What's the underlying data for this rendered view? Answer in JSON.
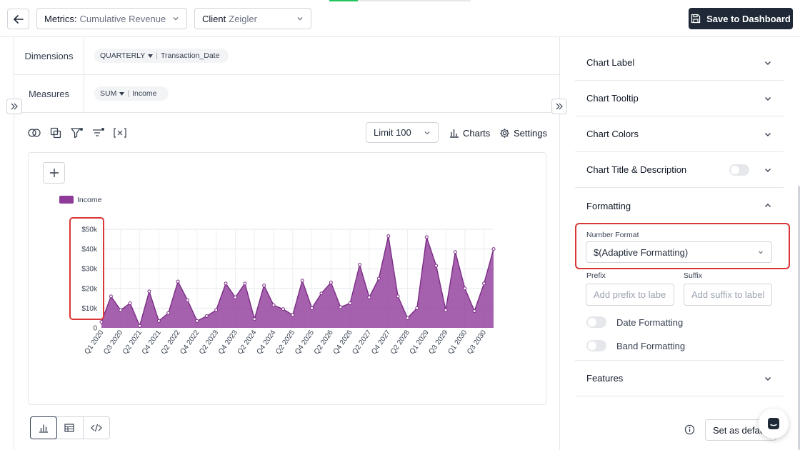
{
  "header": {
    "metrics_label": "Metrics:",
    "metrics_value": "Cumulative Revenue ...",
    "client_label": "Client",
    "client_value": "Zeigler",
    "save_label": "Save to Dashboard",
    "progress_fraction": 0.2
  },
  "query": {
    "dimensions_label": "Dimensions",
    "dimension_agg": "QUARTERLY",
    "dimension_field": "Transaction_Date",
    "measures_label": "Measures",
    "measure_agg": "SUM",
    "measure_field": "Income"
  },
  "toolbar": {
    "limit_value": "Limit 100",
    "charts_label": "Charts",
    "settings_label": "Settings"
  },
  "chart_data": {
    "type": "area",
    "series": [
      {
        "name": "Income",
        "color": "#8e3a99",
        "values": [
          3000,
          16000,
          9000,
          12500,
          1000,
          18500,
          3500,
          7500,
          23500,
          14000,
          3500,
          6000,
          9000,
          22500,
          15500,
          22500,
          4500,
          21500,
          11500,
          9500,
          6500,
          24000,
          10000,
          17500,
          23000,
          10500,
          12500,
          32000,
          15500,
          25000,
          46500,
          16000,
          5000,
          10000,
          46000,
          31500,
          9000,
          38500,
          20000,
          8500,
          22500,
          40000
        ]
      }
    ],
    "x_tick_labels": [
      "Q1 2020",
      "Q3 2020",
      "Q2 2021",
      "Q4 2021",
      "Q2 2022",
      "Q4 2022",
      "Q2 2023",
      "Q4 2023",
      "Q2 2024",
      "Q4 2024",
      "Q2 2025",
      "Q4 2025",
      "Q2 2026",
      "Q4 2026",
      "Q2 2027",
      "Q4 2027",
      "Q2 2028",
      "Q1 2029",
      "Q3 2029",
      "Q1 2030",
      "Q3 2030"
    ],
    "y_tick_labels": [
      "0",
      "$10k",
      "$20k",
      "$30k",
      "$40k",
      "$50k"
    ],
    "ylim": [
      0,
      50000
    ],
    "grid": true,
    "legend": "top-left"
  },
  "sidepanel": {
    "sections": [
      "Chart Label",
      "Chart Tooltip",
      "Chart Colors",
      "Chart Title & Description"
    ],
    "formatting_title": "Formatting",
    "number_format_label": "Number Format",
    "number_format_value": "$(Adaptive Formatting)",
    "prefix_label": "Prefix",
    "suffix_label": "Suffix",
    "prefix_placeholder": "Add prefix to labels",
    "suffix_placeholder": "Add suffix to labels",
    "date_formatting_label": "Date Formatting",
    "band_formatting_label": "Band Formatting",
    "features_title": "Features",
    "set_default_label": "Set as default"
  }
}
